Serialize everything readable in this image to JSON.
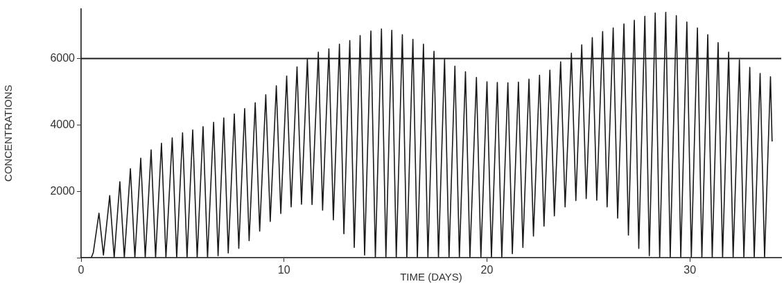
{
  "chart_data": {
    "type": "line",
    "xlabel": "TIME (DAYS)",
    "ylabel": "CONCENTRATIONS",
    "xlim": [
      0,
      34.5
    ],
    "xticks": [
      0,
      10,
      20,
      30
    ],
    "ylim": [
      0,
      7500
    ],
    "yticks": [
      {
        "value": 0,
        "label": null
      },
      2000,
      4000,
      6000
    ],
    "ref_lines": [
      {
        "axis": "y",
        "value": 6000,
        "color": "#1a1a1a"
      }
    ],
    "grid": false,
    "legend": false,
    "marker": "none",
    "line_style": "solid",
    "series": [
      {
        "color": "#1a1a1a",
        "x": [
          0,
          0.5,
          0.6,
          0.88,
          1.1,
          1.41,
          1.63,
          1.91,
          2.13,
          2.43,
          2.65,
          2.94,
          3.16,
          3.45,
          3.67,
          3.96,
          4.18,
          4.49,
          4.71,
          5.0,
          5.22,
          5.5,
          5.72,
          6.01,
          6.23,
          6.53,
          6.75,
          7.03,
          7.25,
          7.55,
          7.77,
          8.06,
          8.28,
          8.58,
          8.8,
          9.1,
          9.32,
          9.62,
          9.84,
          10.13,
          10.35,
          10.64,
          10.86,
          11.15,
          11.38,
          11.69,
          11.9,
          12.21,
          12.43,
          12.73,
          12.95,
          13.24,
          13.46,
          13.75,
          13.97,
          14.28,
          14.5,
          14.8,
          15.02,
          15.31,
          15.53,
          15.83,
          16.05,
          16.35,
          16.57,
          16.87,
          17.09,
          17.39,
          17.61,
          17.91,
          18.13,
          18.42,
          18.64,
          18.94,
          19.16,
          19.48,
          19.7,
          20.0,
          20.22,
          20.51,
          20.73,
          21.03,
          21.25,
          21.55,
          21.77,
          22.07,
          22.29,
          22.59,
          22.81,
          23.1,
          23.32,
          23.63,
          23.85,
          24.16,
          24.38,
          24.67,
          24.89,
          25.19,
          25.41,
          25.7,
          25.92,
          26.22,
          26.44,
          26.75,
          26.97,
          27.26,
          27.48,
          27.78,
          28.0,
          28.29,
          28.51,
          28.81,
          29.03,
          29.33,
          29.55,
          29.85,
          30.07,
          30.37,
          30.59,
          30.88,
          31.1,
          31.39,
          31.61,
          31.91,
          32.13,
          32.44,
          32.66,
          32.95,
          33.17,
          33.46,
          33.68,
          33.97,
          34.05
        ],
        "values": [
          0,
          0,
          150,
          1340,
          80,
          1870,
          0,
          2290,
          0,
          2680,
          0,
          3000,
          0,
          3250,
          0,
          3450,
          0,
          3610,
          0,
          3760,
          0,
          3850,
          0,
          3950,
          0,
          4080,
          60,
          4210,
          140,
          4330,
          280,
          4490,
          510,
          4670,
          800,
          4910,
          1090,
          5180,
          1330,
          5470,
          1530,
          5750,
          1610,
          5980,
          1600,
          6190,
          1430,
          6290,
          1140,
          6430,
          720,
          6540,
          310,
          6690,
          80,
          6830,
          0,
          6890,
          0,
          6850,
          0,
          6720,
          0,
          6580,
          0,
          6430,
          0,
          6220,
          0,
          5990,
          0,
          5770,
          0,
          5600,
          0,
          5430,
          0,
          5300,
          0,
          5280,
          0,
          5270,
          120,
          5290,
          310,
          5380,
          650,
          5500,
          950,
          5650,
          1260,
          5900,
          1530,
          6160,
          1720,
          6410,
          1780,
          6630,
          1730,
          6810,
          1530,
          6920,
          1190,
          7040,
          680,
          7150,
          280,
          7270,
          60,
          7370,
          0,
          7390,
          0,
          7290,
          0,
          7100,
          0,
          6920,
          0,
          6720,
          0,
          6480,
          0,
          6190,
          0,
          5960,
          0,
          5730,
          0,
          5550,
          0,
          5450,
          3500
        ]
      }
    ]
  }
}
